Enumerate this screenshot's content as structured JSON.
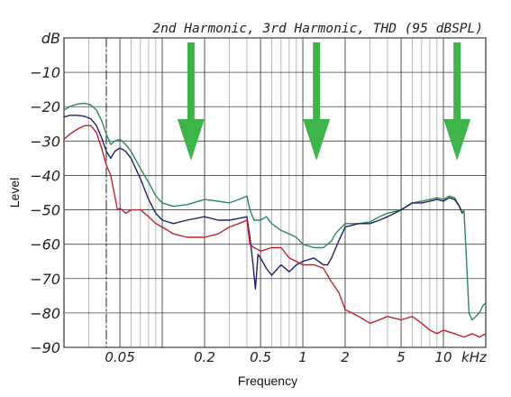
{
  "chart_data": {
    "type": "line",
    "title": "2nd Harmonic, 3rd Harmonic, THD (95 dBSPL)",
    "xlabel": "Frequency",
    "ylabel": "Level",
    "x_scale": "log",
    "x_unit": "kHz",
    "y_unit": "dB",
    "xlim": [
      0.02,
      20
    ],
    "ylim": [
      -90,
      0
    ],
    "grid": true,
    "y_ticks": [
      {
        "value": 0,
        "label": "dB"
      },
      {
        "value": -10,
        "label": "−10"
      },
      {
        "value": -20,
        "label": "−20"
      },
      {
        "value": -30,
        "label": "−30"
      },
      {
        "value": -40,
        "label": "−40"
      },
      {
        "value": -50,
        "label": "−50"
      },
      {
        "value": -60,
        "label": "−60"
      },
      {
        "value": -70,
        "label": "−70"
      },
      {
        "value": -80,
        "label": "−80"
      },
      {
        "value": -90,
        "label": "−90"
      }
    ],
    "x_ticks": [
      {
        "value": 0.05,
        "label": "0.05"
      },
      {
        "value": 0.2,
        "label": "0.2"
      },
      {
        "value": 0.5,
        "label": "0.5"
      },
      {
        "value": 1,
        "label": "1"
      },
      {
        "value": 2,
        "label": "2"
      },
      {
        "value": 5,
        "label": "5"
      },
      {
        "value": 10,
        "label": "10"
      },
      {
        "value": 16.5,
        "label": "kHz"
      }
    ],
    "marker_line_x": 0.04,
    "arrows": [
      {
        "x": 0.16,
        "color": "#3db54a"
      },
      {
        "x": 1.25,
        "color": "#3db54a"
      },
      {
        "x": 12.5,
        "color": "#3db54a"
      }
    ],
    "series": [
      {
        "color": "#2a8a5a",
        "points": [
          [
            0.02,
            -21
          ],
          [
            0.022,
            -20
          ],
          [
            0.025,
            -19.2
          ],
          [
            0.028,
            -19
          ],
          [
            0.031,
            -19.5
          ],
          [
            0.034,
            -21
          ],
          [
            0.037,
            -24
          ],
          [
            0.04,
            -28
          ],
          [
            0.043,
            -31
          ],
          [
            0.046,
            -30
          ],
          [
            0.05,
            -29.5
          ],
          [
            0.055,
            -31
          ],
          [
            0.06,
            -33
          ],
          [
            0.07,
            -38
          ],
          [
            0.08,
            -42
          ],
          [
            0.09,
            -46
          ],
          [
            0.1,
            -48
          ],
          [
            0.12,
            -49
          ],
          [
            0.15,
            -48.5
          ],
          [
            0.2,
            -47
          ],
          [
            0.25,
            -47.5
          ],
          [
            0.3,
            -48
          ],
          [
            0.35,
            -47
          ],
          [
            0.4,
            -46
          ],
          [
            0.42,
            -50
          ],
          [
            0.45,
            -53
          ],
          [
            0.5,
            -53
          ],
          [
            0.55,
            -52
          ],
          [
            0.6,
            -54
          ],
          [
            0.7,
            -56
          ],
          [
            0.8,
            -57
          ],
          [
            0.9,
            -58
          ],
          [
            1.0,
            -60
          ],
          [
            1.2,
            -61
          ],
          [
            1.4,
            -61
          ],
          [
            1.5,
            -60
          ],
          [
            1.6,
            -59
          ],
          [
            1.7,
            -57
          ],
          [
            2.0,
            -54
          ],
          [
            2.5,
            -54
          ],
          [
            3.0,
            -53.5
          ],
          [
            3.5,
            -52
          ],
          [
            4.0,
            -51
          ],
          [
            5.0,
            -50
          ],
          [
            6.0,
            -48
          ],
          [
            7.0,
            -47.5
          ],
          [
            8.0,
            -47
          ],
          [
            9.0,
            -46.5
          ],
          [
            10.0,
            -47
          ],
          [
            11.0,
            -46
          ],
          [
            12.0,
            -46.5
          ],
          [
            13.0,
            -49
          ],
          [
            13.6,
            -51
          ],
          [
            14.0,
            -50
          ],
          [
            14.6,
            -65
          ],
          [
            15.2,
            -80
          ],
          [
            16.0,
            -82
          ],
          [
            17.0,
            -81
          ],
          [
            18.0,
            -80
          ],
          [
            19.0,
            -78
          ],
          [
            20.0,
            -77
          ]
        ]
      },
      {
        "color": "#22226a",
        "points": [
          [
            0.02,
            -23
          ],
          [
            0.022,
            -22.5
          ],
          [
            0.025,
            -22.5
          ],
          [
            0.028,
            -22.8
          ],
          [
            0.031,
            -23.5
          ],
          [
            0.034,
            -25.5
          ],
          [
            0.037,
            -29
          ],
          [
            0.04,
            -33
          ],
          [
            0.043,
            -35
          ],
          [
            0.046,
            -33
          ],
          [
            0.05,
            -32
          ],
          [
            0.055,
            -33
          ],
          [
            0.06,
            -35
          ],
          [
            0.07,
            -41
          ],
          [
            0.08,
            -47
          ],
          [
            0.09,
            -51
          ],
          [
            0.1,
            -53
          ],
          [
            0.12,
            -54
          ],
          [
            0.15,
            -53
          ],
          [
            0.2,
            -52
          ],
          [
            0.25,
            -53
          ],
          [
            0.3,
            -53
          ],
          [
            0.35,
            -52.5
          ],
          [
            0.4,
            -52
          ],
          [
            0.42,
            -58
          ],
          [
            0.44,
            -65
          ],
          [
            0.46,
            -73
          ],
          [
            0.48,
            -63
          ],
          [
            0.5,
            -64
          ],
          [
            0.55,
            -67
          ],
          [
            0.6,
            -69
          ],
          [
            0.7,
            -66
          ],
          [
            0.8,
            -68
          ],
          [
            0.9,
            -66
          ],
          [
            1.0,
            -65
          ],
          [
            1.2,
            -64
          ],
          [
            1.4,
            -66
          ],
          [
            1.5,
            -66
          ],
          [
            1.6,
            -64
          ],
          [
            1.8,
            -59
          ],
          [
            2.0,
            -55
          ],
          [
            2.5,
            -54
          ],
          [
            3.0,
            -54
          ],
          [
            3.5,
            -53
          ],
          [
            4.0,
            -52
          ],
          [
            5.0,
            -50
          ],
          [
            6.0,
            -48
          ],
          [
            7.0,
            -48
          ],
          [
            8.0,
            -47.5
          ],
          [
            9.0,
            -47
          ],
          [
            10.0,
            -47.5
          ],
          [
            11.0,
            -46.5
          ],
          [
            12.0,
            -47
          ],
          [
            13.0,
            -49
          ],
          [
            13.6,
            -51
          ]
        ]
      },
      {
        "color": "#c0222c",
        "points": [
          [
            0.02,
            -29.5
          ],
          [
            0.022,
            -28
          ],
          [
            0.025,
            -26.5
          ],
          [
            0.028,
            -25.5
          ],
          [
            0.031,
            -25.5
          ],
          [
            0.034,
            -27.5
          ],
          [
            0.037,
            -32
          ],
          [
            0.04,
            -37
          ],
          [
            0.043,
            -40
          ],
          [
            0.046,
            -46
          ],
          [
            0.048,
            -50
          ],
          [
            0.05,
            -49.5
          ],
          [
            0.055,
            -51
          ],
          [
            0.06,
            -50
          ],
          [
            0.07,
            -50
          ],
          [
            0.08,
            -52
          ],
          [
            0.09,
            -54
          ],
          [
            0.1,
            -55
          ],
          [
            0.12,
            -57
          ],
          [
            0.15,
            -58
          ],
          [
            0.2,
            -58
          ],
          [
            0.25,
            -57
          ],
          [
            0.3,
            -55
          ],
          [
            0.35,
            -54
          ],
          [
            0.4,
            -53
          ],
          [
            0.42,
            -60
          ],
          [
            0.45,
            -61
          ],
          [
            0.5,
            -62
          ],
          [
            0.6,
            -61
          ],
          [
            0.7,
            -61
          ],
          [
            0.8,
            -64
          ],
          [
            0.9,
            -65
          ],
          [
            1.0,
            -66
          ],
          [
            1.2,
            -66
          ],
          [
            1.4,
            -67
          ],
          [
            1.6,
            -71
          ],
          [
            1.8,
            -74
          ],
          [
            2.0,
            -79
          ],
          [
            2.5,
            -81
          ],
          [
            3.0,
            -83
          ],
          [
            3.5,
            -82
          ],
          [
            4.0,
            -81
          ],
          [
            5.0,
            -82
          ],
          [
            6.0,
            -81
          ],
          [
            7.0,
            -83
          ],
          [
            8.0,
            -85
          ],
          [
            9.0,
            -86
          ],
          [
            10.0,
            -85
          ],
          [
            12.0,
            -86
          ],
          [
            14.0,
            -87
          ],
          [
            16.0,
            -86
          ],
          [
            18.0,
            -87
          ],
          [
            20.0,
            -86
          ]
        ]
      }
    ]
  }
}
